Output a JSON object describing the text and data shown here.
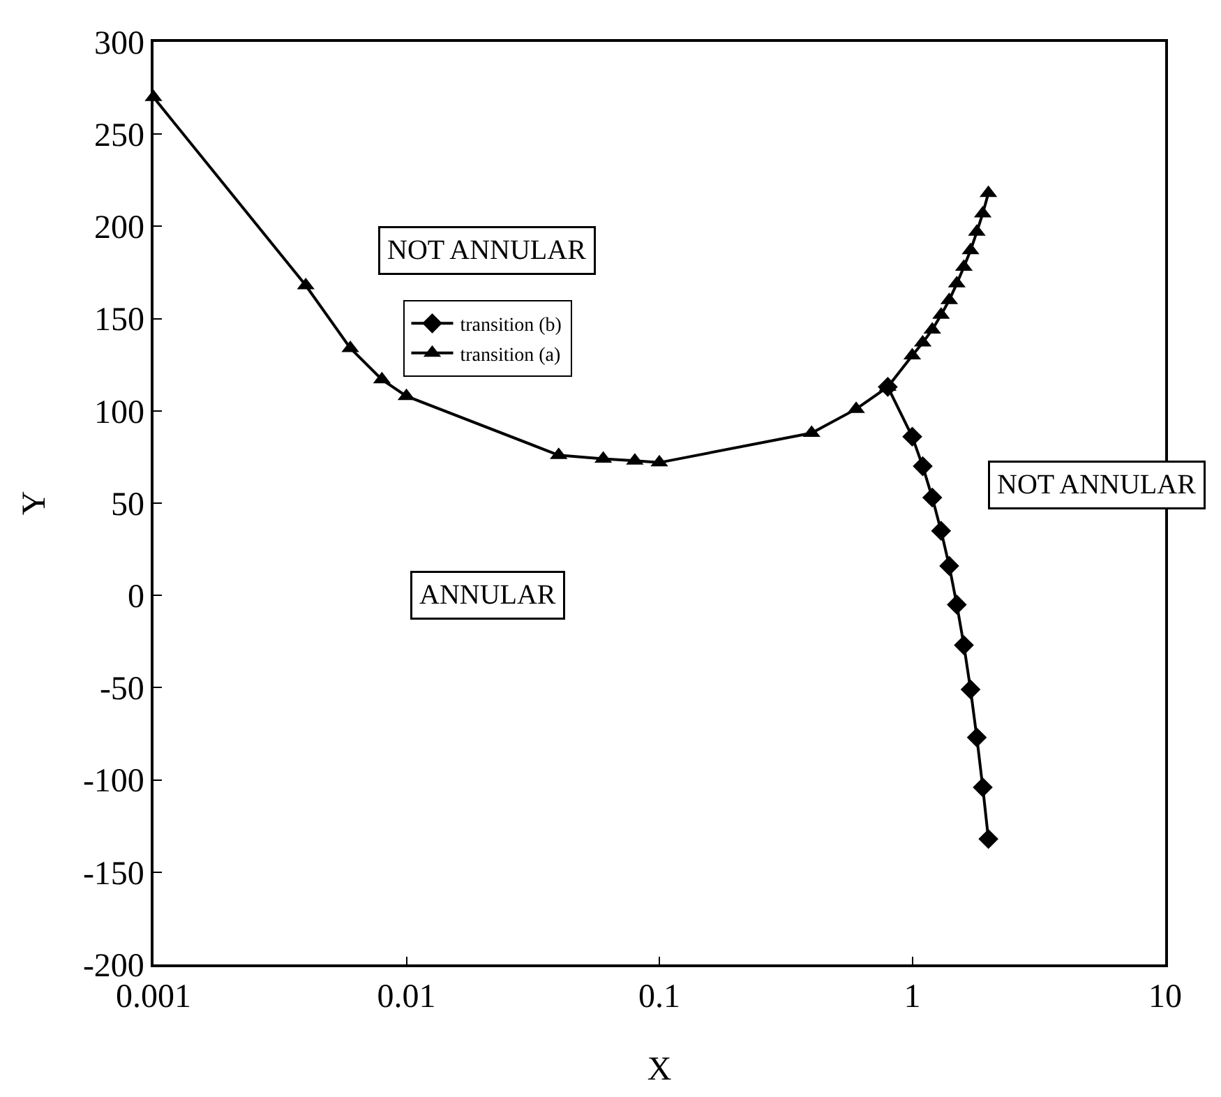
{
  "chart_data": {
    "type": "line",
    "xlabel": "X",
    "ylabel": "Y",
    "log": "x",
    "xlim": [
      0.001,
      10
    ],
    "xticks": [
      0.001,
      0.01,
      0.1,
      1,
      10
    ],
    "ylim": [
      -200,
      300
    ],
    "yticks": [
      -200,
      -150,
      -100,
      -50,
      0,
      50,
      100,
      150,
      200,
      250,
      300
    ],
    "grid": false,
    "legend": "top",
    "line_style": "solid",
    "annotations": [
      "NOT ANNULAR",
      "NOT ANNULAR",
      "ANNULAR"
    ],
    "series": [
      {
        "name": "transition (a)",
        "color": "#000000",
        "marker": "triangle",
        "x": [
          0.001,
          0.004,
          0.006,
          0.008,
          0.01,
          0.04,
          0.06,
          0.08,
          0.1,
          0.4,
          0.6,
          0.8,
          1.0,
          1.1,
          1.2,
          1.3,
          1.4,
          1.5,
          1.6,
          1.7,
          1.8,
          1.9,
          2.0
        ],
        "values": [
          270,
          168,
          134,
          117,
          108,
          76,
          74,
          73,
          72,
          88,
          101,
          113,
          130,
          137,
          144,
          152,
          160,
          169,
          178,
          187,
          197,
          207,
          218
        ]
      },
      {
        "name": "transition (b)",
        "color": "#000000",
        "marker": "diamond",
        "x": [
          0.8,
          1.0,
          1.1,
          1.2,
          1.3,
          1.4,
          1.5,
          1.6,
          1.7,
          1.8,
          1.9,
          2.0
        ],
        "values": [
          113,
          86,
          70,
          53,
          35,
          16,
          -5,
          -27,
          -51,
          -77,
          -104,
          -132
        ]
      }
    ]
  }
}
